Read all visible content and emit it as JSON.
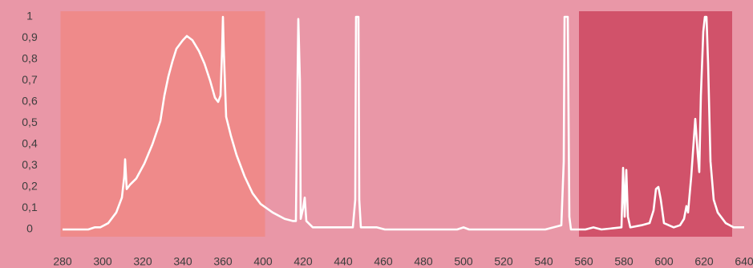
{
  "chart_data": {
    "type": "line",
    "x": [
      280,
      292.8,
      296,
      298.8,
      302.8,
      306.8,
      309.6,
      310.8,
      311.2,
      312,
      313.6,
      316.8,
      320.8,
      324.8,
      328.8,
      330.8,
      332.8,
      334.8,
      336.8,
      340,
      342,
      344.8,
      348,
      350.8,
      353.6,
      356,
      357.6,
      358.8,
      359.6,
      360,
      360.8,
      363.2,
      368,
      373.6,
      381.6,
      389.6,
      397.6,
      404.8,
      410.8,
      414.8,
      416.4,
      417.2,
      417.6,
      418.4,
      418.8,
      420,
      420.8,
      421.6,
      424.8,
      444.8,
      446,
      446.4,
      447.6,
      448,
      448.8,
      456.8,
      460.8,
      496.8,
      500,
      502.8,
      540.8,
      548.8,
      550,
      550.4,
      552,
      552.8,
      553.6,
      560.8,
      564.8,
      568.8,
      578.8,
      579.6,
      580.4,
      581.2,
      582,
      583.2,
      588.8,
      592.8,
      594.8,
      596,
      597.2,
      598.4,
      600,
      604.8,
      608,
      610,
      611.2,
      612,
      613.6,
      615.6,
      616.8,
      617.6,
      618.4,
      619.6,
      620.4,
      621.2,
      622,
      623.2,
      624.8,
      626.8,
      630.8,
      634.8,
      640
    ],
    "values": [
      0,
      0,
      0.01,
      0.01,
      0.03,
      0.08,
      0.15,
      0.25,
      0.33,
      0.19,
      0.21,
      0.24,
      0.31,
      0.4,
      0.51,
      0.63,
      0.72,
      0.79,
      0.85,
      0.89,
      0.91,
      0.89,
      0.84,
      0.78,
      0.7,
      0.62,
      0.6,
      0.63,
      0.85,
      1.0,
      0.85,
      0.53,
      0.44,
      0.35,
      0.25,
      0.17,
      0.12,
      0.08,
      0.05,
      0.04,
      0.04,
      0.7,
      0.99,
      0.7,
      0.05,
      0.1,
      0.15,
      0.04,
      0.01,
      0.01,
      0.14,
      1.0,
      1.0,
      0.14,
      0.01,
      0.01,
      0,
      0,
      0.01,
      0,
      0,
      0.02,
      0.32,
      1.0,
      1.0,
      0.06,
      0,
      0,
      0.01,
      0,
      0.01,
      0.29,
      0.06,
      0.28,
      0.06,
      0.01,
      0.02,
      0.03,
      0.09,
      0.19,
      0.2,
      0.14,
      0.03,
      0.01,
      0.02,
      0.05,
      0.11,
      0.08,
      0.25,
      0.52,
      0.36,
      0.27,
      0.63,
      0.93,
      1.0,
      1.0,
      0.78,
      0.32,
      0.14,
      0.08,
      0.03,
      0.01,
      0.01
    ],
    "color": "#ffffff",
    "bands": [
      {
        "xlim": [
          279,
          401
        ],
        "color": "#ef8a8a"
      },
      {
        "xlim": [
          557.6,
          634
        ],
        "color": "#d1526a"
      }
    ],
    "xlim": [
      280,
      640
    ],
    "xticks": [
      280,
      300,
      320,
      340,
      360,
      400,
      420,
      440,
      460,
      480,
      500,
      520,
      540,
      560,
      580,
      600,
      620,
      640
    ],
    "ylim": [
      0,
      1
    ],
    "yticks": [
      0,
      {
        "value": 0.1,
        "label": "0,1"
      },
      {
        "value": 0.2,
        "label": "0,2"
      },
      {
        "value": 0.3,
        "label": "0,3"
      },
      {
        "value": 0.4,
        "label": "0,4"
      },
      {
        "value": 0.5,
        "label": "0,5"
      },
      {
        "value": 0.6,
        "label": "0,6"
      },
      {
        "value": 0.7,
        "label": "0,7"
      },
      {
        "value": 0.8,
        "label": "0,8"
      },
      {
        "value": 0.9,
        "label": "0,9"
      },
      1
    ]
  }
}
